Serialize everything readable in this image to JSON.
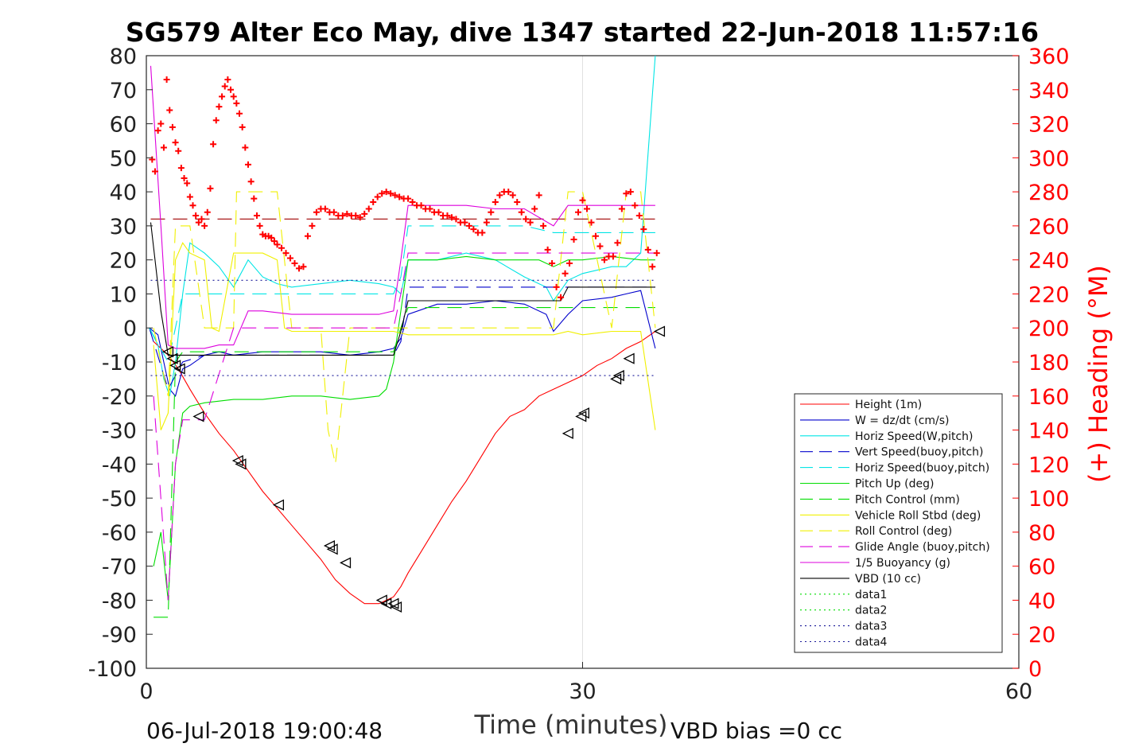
{
  "chart_data": {
    "type": "line",
    "title": "SG579 Alter Eco May, dive 1347 started 22-Jun-2018 11:57:16",
    "xlabel": "Time (minutes)",
    "ylabel_left": "",
    "ylabel_right": "(+) Heading (°M)",
    "xlim": [
      0,
      60
    ],
    "ylim_left": [
      -100,
      80
    ],
    "ylim_right": [
      0,
      360
    ],
    "x_ticks": [
      "0",
      "30",
      "60"
    ],
    "y_ticks_left": [
      "80",
      "70",
      "60",
      "50",
      "40",
      "30",
      "20",
      "10",
      "0",
      "-10",
      "-20",
      "-30",
      "-40",
      "-50",
      "-60",
      "-70",
      "-80",
      "-90",
      "-100"
    ],
    "y_ticks_right": [
      "360",
      "340",
      "320",
      "300",
      "280",
      "260",
      "240",
      "220",
      "200",
      "180",
      "160",
      "140",
      "120",
      "100",
      "80",
      "60",
      "40",
      "20",
      "0"
    ],
    "grid": "vertical lines at x ticks",
    "legend_position": "lower-right",
    "footer_left": "06-Jul-2018 19:00:48",
    "footer_right": "VBD bias =0 cc",
    "colors": {
      "red": "#ff0000",
      "blue": "#0000cc",
      "cyan": "#00e5e5",
      "green": "#00dd00",
      "yellow": "#f0f000",
      "magenta": "#dd00dd",
      "black": "#000000",
      "darkred": "#a00000",
      "navy": "#1a1a99"
    },
    "series": [
      {
        "name": "Height (1m)",
        "color": "#ff0000",
        "style": "solid",
        "x": [
          0.5,
          1.5,
          2.2,
          3.0,
          4.0,
          5.0,
          6.0,
          7.0,
          8.0,
          9.0,
          10.0,
          11.0,
          12.0,
          13.0,
          14.0,
          15.0,
          16.0,
          17.0,
          17.5,
          18.0,
          19.0,
          20.0,
          21.0,
          22.0,
          23.0,
          24.0,
          25.0,
          26.0,
          27.0,
          28.0,
          29.0,
          30.0,
          31.0,
          32.0,
          33.0,
          34.0,
          35.0
        ],
        "y": [
          -4,
          -8,
          -12,
          -18,
          -25,
          -31,
          -36,
          -42,
          -48,
          -53,
          -58,
          -63,
          -68,
          -74,
          -78,
          -81,
          -81,
          -79,
          -76,
          -72,
          -65,
          -58,
          -51,
          -45,
          -38,
          -31,
          -26,
          -24,
          -20,
          -18,
          -16,
          -14,
          -11,
          -9,
          -6,
          -4,
          -1
        ]
      },
      {
        "name": "W = dz/dt (cm/s)",
        "color": "#0000cc",
        "style": "solid",
        "x": [
          0.2,
          0.8,
          1.2,
          1.6,
          2.0,
          2.5,
          3.0,
          4.0,
          5.0,
          6.0,
          8.0,
          10.0,
          12.0,
          14.0,
          16.0,
          17.0,
          17.5,
          18.0,
          20.0,
          22.0,
          24.0,
          26.0,
          27.5,
          28.0,
          29.0,
          30.0,
          32.0,
          33.0,
          34.0,
          35.0
        ],
        "y": [
          0,
          -2,
          -10,
          -18,
          -20,
          -12,
          -11,
          -8,
          -7,
          -8,
          -7,
          -7,
          -7,
          -8,
          -7,
          -6,
          -3,
          4,
          7,
          7,
          8,
          7,
          4,
          -1,
          4,
          8,
          9,
          10,
          11,
          -6
        ]
      },
      {
        "name": "Horiz Speed(W,pitch)",
        "color": "#00e5e5",
        "style": "solid",
        "x": [
          0.2,
          0.8,
          1.2,
          1.6,
          2.0,
          2.5,
          3.0,
          4.0,
          5.0,
          6.0,
          7.0,
          8.0,
          9.0,
          10.0,
          12.0,
          14.0,
          16.0,
          17.0,
          17.5,
          18.0,
          20.0,
          22.0,
          24.0,
          26.0,
          27.5,
          28.0,
          29.0,
          30.0,
          32.0,
          33.0,
          34.0,
          35.0
        ],
        "y": [
          0,
          -5,
          -15,
          -20,
          -10,
          10,
          25,
          22,
          18,
          12,
          20,
          15,
          13,
          12,
          13,
          14,
          13,
          12,
          10,
          20,
          20,
          22,
          20,
          15,
          12,
          8,
          14,
          16,
          18,
          18,
          22,
          80
        ]
      },
      {
        "name": "Vert Speed(buoy,pitch)",
        "color": "#0000cc",
        "style": "dashed",
        "x": [
          0.2,
          1.5,
          2.5,
          4.0,
          8.0,
          12.0,
          16.0,
          17.0,
          17.5,
          18.0,
          22.0,
          26.0,
          28.0,
          30.0,
          35.0
        ],
        "y": [
          0,
          -18,
          -10,
          -8,
          -8,
          -8,
          -8,
          -8,
          -4,
          12,
          12,
          12,
          12,
          12,
          12
        ]
      },
      {
        "name": "Horiz Speed(buoy,pitch)",
        "color": "#00e5e5",
        "style": "dashed",
        "x": [
          0.2,
          1.5,
          2.5,
          4.0,
          8.0,
          12.0,
          16.0,
          17.0,
          17.5,
          18.0,
          22.0,
          26.0,
          28.0,
          30.0,
          35.0
        ],
        "y": [
          0,
          -10,
          10,
          10,
          10,
          10,
          10,
          10,
          15,
          30,
          30,
          30,
          28,
          28,
          28
        ]
      },
      {
        "name": "Pitch Up (deg)",
        "color": "#00dd00",
        "style": "solid",
        "x": [
          0.5,
          1.0,
          1.5,
          2.0,
          2.5,
          3.0,
          4.0,
          6.0,
          8.0,
          10.0,
          12.0,
          14.0,
          16.0,
          16.5,
          17.0,
          17.5,
          18.0,
          20.0,
          22.0,
          24.0,
          26.0,
          27.0,
          28.0,
          29.0,
          30.0,
          32.0,
          34.0,
          35.0
        ],
        "y": [
          -70,
          -60,
          -80,
          -40,
          -25,
          -23,
          -22,
          -21,
          -21,
          -20,
          -20,
          -21,
          -20,
          -18,
          -10,
          5,
          20,
          20,
          21,
          20,
          20,
          20,
          18,
          20,
          20,
          21,
          20,
          20
        ]
      },
      {
        "name": "Pitch Control (mm)",
        "color": "#00dd00",
        "style": "dashed",
        "x": [
          0.5,
          1.5,
          2.0,
          2.5,
          4.0,
          8.0,
          12.0,
          16.0,
          17.0,
          17.5,
          18.0,
          22.0,
          26.0,
          28.0,
          30.0,
          35.0
        ],
        "y": [
          -85,
          -85,
          -10,
          -7,
          -7,
          -7,
          -7,
          -7,
          -7,
          0,
          6,
          6,
          6,
          6,
          6,
          6
        ]
      },
      {
        "name": "Vehicle Roll Stbd (deg)",
        "color": "#f0f000",
        "style": "solid",
        "x": [
          0.5,
          1.0,
          1.5,
          2.0,
          2.5,
          3.0,
          4.0,
          4.5,
          5.0,
          6.0,
          8.0,
          9.0,
          9.5,
          10.0,
          12.0,
          14.0,
          16.0,
          17.0,
          18.0,
          22.0,
          26.0,
          28.0,
          29.0,
          30.0,
          32.0,
          34.0,
          35.0
        ],
        "y": [
          -5,
          -30,
          -25,
          20,
          25,
          22,
          20,
          0,
          -1,
          22,
          22,
          20,
          0,
          -1,
          -1,
          -1,
          -1,
          -1,
          -2,
          -2,
          -2,
          -2,
          -1,
          -2,
          -1,
          -1,
          -30
        ]
      },
      {
        "name": "Roll Control (deg)",
        "color": "#f0f000",
        "style": "dashed",
        "x": [
          0.5,
          1.5,
          2.0,
          3.0,
          4.0,
          5.0,
          6.0,
          6.2,
          9.0,
          10.0,
          12.0,
          12.5,
          13.0,
          14.0,
          16.0,
          17.0,
          18.0,
          22.0,
          26.0,
          28.0,
          29.0,
          30.0,
          32.0,
          33.0,
          34.0,
          35.0
        ],
        "y": [
          0,
          -20,
          30,
          30,
          0,
          0,
          0,
          40,
          40,
          0,
          0,
          -30,
          -40,
          0,
          0,
          0,
          0,
          0,
          0,
          0,
          40,
          40,
          0,
          40,
          40,
          0
        ]
      },
      {
        "name": "Glide Angle (buoy,pitch)",
        "color": "#dd00dd",
        "style": "dashed",
        "x": [
          0.5,
          1.5,
          2.0,
          2.5,
          4.0,
          6.0,
          8.0,
          12.0,
          16.0,
          17.0,
          17.5,
          18.0,
          22.0,
          26.0,
          28.0,
          30.0,
          35.0
        ],
        "y": [
          -20,
          -80,
          -40,
          -27,
          -27,
          0,
          0,
          0,
          0,
          0,
          10,
          22,
          22,
          22,
          22,
          22,
          22
        ]
      },
      {
        "name": "1/5 Buoyancy (g)",
        "color": "#dd00dd",
        "style": "solid",
        "x": [
          0.3,
          1.0,
          1.5,
          2.0,
          2.5,
          3.0,
          4.0,
          5.0,
          6.0,
          7.0,
          8.0,
          10.0,
          12.0,
          14.0,
          16.0,
          17.0,
          17.5,
          18.0,
          20.0,
          22.0,
          24.0,
          26.0,
          28.0,
          29.0,
          30.0,
          32.0,
          34.0,
          35.0
        ],
        "y": [
          77,
          30,
          -5,
          -6,
          -6,
          -6,
          -6,
          -5,
          -5,
          5,
          5,
          4,
          4,
          4,
          4,
          5,
          20,
          36,
          36,
          36,
          35,
          35,
          30,
          36,
          36,
          36,
          36,
          36
        ]
      },
      {
        "name": "VBD (10 cc)",
        "color": "#000000",
        "style": "solid",
        "x": [
          0.3,
          1.0,
          1.5,
          2.0,
          4.0,
          8.0,
          12.0,
          16.0,
          16.5,
          17.0,
          17.5,
          18.0,
          22.0,
          26.0,
          28.0,
          28.5,
          29.0,
          30.0,
          32.0,
          34.0,
          35.0
        ],
        "y": [
          31,
          5,
          -8,
          -8,
          -8,
          -8,
          -8,
          -8,
          -8,
          -8,
          -1,
          8,
          8,
          8,
          8,
          8,
          12,
          12,
          12,
          12,
          12
        ]
      },
      {
        "name": "data1",
        "color": "#00dd00",
        "style": "dotted",
        "x": [],
        "y": []
      },
      {
        "name": "data2",
        "color": "#00dd00",
        "style": "dotted",
        "x": [],
        "y": []
      },
      {
        "name": "data3",
        "color": "#1a1a99",
        "style": "dotted",
        "x": [
          0.3,
          35.0
        ],
        "y": [
          14,
          14
        ]
      },
      {
        "name": "data4",
        "color": "#1a1a99",
        "style": "dotted",
        "x": [
          0.3,
          35.0
        ],
        "y": [
          -14,
          -14
        ]
      }
    ],
    "unlabeled_lines": [
      {
        "color": "#a00000",
        "style": "dashed",
        "x": [
          0.3,
          35.0
        ],
        "y": [
          32,
          32
        ]
      }
    ],
    "heading_points": {
      "axis": "right",
      "marker": "+",
      "color": "#ff0000",
      "x": [
        0.4,
        0.6,
        0.8,
        1.0,
        1.2,
        1.4,
        1.6,
        1.8,
        2.0,
        2.2,
        2.4,
        2.6,
        2.8,
        3.0,
        3.2,
        3.4,
        3.6,
        3.8,
        4.0,
        4.2,
        4.4,
        4.6,
        4.8,
        5.0,
        5.2,
        5.4,
        5.6,
        5.8,
        6.0,
        6.2,
        6.4,
        6.6,
        6.8,
        7.0,
        7.2,
        7.4,
        7.6,
        7.8,
        8.0,
        8.2,
        8.4,
        8.6,
        8.8,
        9.0,
        9.3,
        9.6,
        9.9,
        10.2,
        10.5,
        10.8,
        11.1,
        11.4,
        11.7,
        12.0,
        12.3,
        12.6,
        12.9,
        13.2,
        13.5,
        13.8,
        14.1,
        14.4,
        14.7,
        15.0,
        15.3,
        15.6,
        15.9,
        16.2,
        16.5,
        16.8,
        17.1,
        17.4,
        17.7,
        18.0,
        18.3,
        18.6,
        18.9,
        19.2,
        19.5,
        19.8,
        20.1,
        20.4,
        20.7,
        21.0,
        21.3,
        21.6,
        21.9,
        22.2,
        22.5,
        22.8,
        23.1,
        23.4,
        23.7,
        24.0,
        24.3,
        24.6,
        24.9,
        25.2,
        25.5,
        25.8,
        26.1,
        26.4,
        26.7,
        27.0,
        27.3,
        27.6,
        27.9,
        28.2,
        28.5,
        28.8,
        29.1,
        29.4,
        29.7,
        30.0,
        30.3,
        30.6,
        30.9,
        31.2,
        31.5,
        31.8,
        32.1,
        32.4,
        32.7,
        33.0,
        33.3,
        33.6,
        33.9,
        34.2,
        34.5,
        34.8,
        35.1
      ],
      "y": [
        299,
        292,
        316,
        320,
        306,
        346,
        328,
        318,
        309,
        304,
        294,
        288,
        285,
        277,
        272,
        266,
        262,
        264,
        260,
        268,
        282,
        308,
        322,
        330,
        336,
        342,
        346,
        340,
        336,
        332,
        326,
        318,
        306,
        296,
        286,
        276,
        266,
        260,
        255,
        254,
        254,
        253,
        251,
        249,
        247,
        244,
        241,
        238,
        235,
        236,
        254,
        260,
        268,
        270,
        270,
        268,
        268,
        266,
        266,
        267,
        266,
        266,
        265,
        267,
        270,
        274,
        277,
        279,
        280,
        279,
        278,
        277,
        276,
        276,
        274,
        272,
        272,
        270,
        270,
        268,
        268,
        266,
        266,
        265,
        264,
        262,
        262,
        260,
        258,
        256,
        256,
        262,
        268,
        274,
        278,
        280,
        280,
        278,
        274,
        268,
        264,
        262,
        270,
        278,
        260,
        246,
        238,
        224,
        218,
        232,
        238,
        252,
        268,
        275,
        270,
        262,
        254,
        248,
        240,
        242,
        242,
        250,
        270,
        279,
        280,
        272,
        266,
        258,
        246,
        236,
        244
      ]
    },
    "markers": {
      "symbol": "left-pointing open triangle",
      "color": "#000000",
      "x": [
        1.5,
        1.8,
        2.0,
        2.3,
        3.6,
        6.3,
        6.5,
        9.1,
        12.6,
        12.8,
        13.7,
        16.2,
        16.5,
        17.0,
        17.2,
        29.0,
        29.9,
        30.1,
        32.3,
        32.5,
        33.2,
        35.3
      ],
      "y": [
        -7,
        -9,
        -11,
        -12,
        -26,
        -39,
        -40,
        -52,
        -64,
        -65,
        -69,
        -80,
        -81,
        -81,
        -82,
        -31,
        -26,
        -25,
        -15,
        -14,
        -9,
        -1
      ]
    }
  }
}
